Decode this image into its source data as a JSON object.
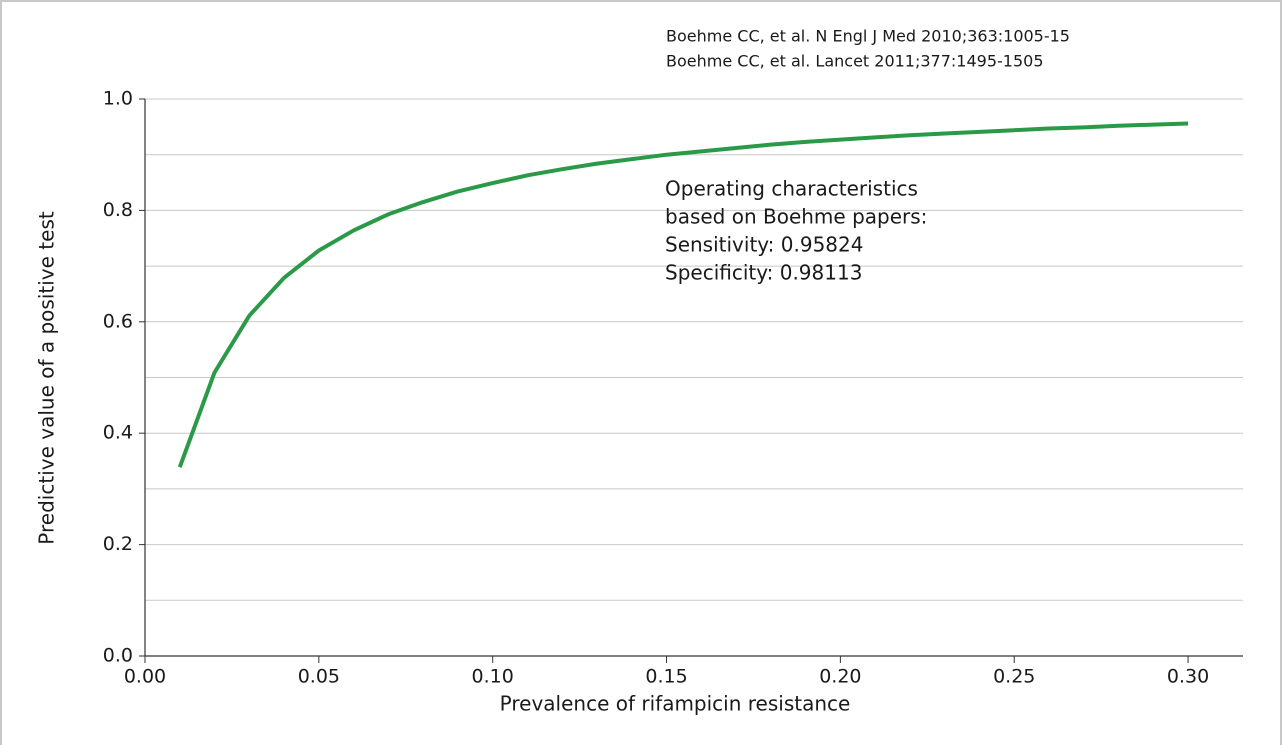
{
  "chart_data": {
    "type": "line",
    "references": [
      "Boehme CC, et al.  N Engl J Med 2010;363:1005-15",
      "Boehme CC, et al. Lancet 2011;377:1495-1505"
    ],
    "annotation": [
      "Operating characteristics",
      "based on Boehme papers:",
      "Sensitivity: 0.95824",
      "Specificity: 0.98113"
    ],
    "x_label": "Prevalence of rifampicin resistance",
    "y_label": "Predictive value of a positive test",
    "x": [
      0.01,
      0.02,
      0.03,
      0.04,
      0.05,
      0.06,
      0.07,
      0.08,
      0.09,
      0.1,
      0.11,
      0.12,
      0.13,
      0.14,
      0.15,
      0.16,
      0.17,
      0.18,
      0.19,
      0.2,
      0.21,
      0.22,
      0.23,
      0.24,
      0.25,
      0.26,
      0.27,
      0.28,
      0.29,
      0.3
    ],
    "series": [
      {
        "color": "#2a9a48",
        "values": [
          0.339,
          0.509,
          0.611,
          0.679,
          0.728,
          0.764,
          0.793,
          0.815,
          0.834,
          0.849,
          0.863,
          0.874,
          0.884,
          0.892,
          0.9,
          0.906,
          0.912,
          0.918,
          0.923,
          0.927,
          0.931,
          0.935,
          0.938,
          0.941,
          0.944,
          0.947,
          0.949,
          0.952,
          0.954,
          0.956
        ]
      }
    ],
    "xlim": [
      0,
      0.3158
    ],
    "ylim": [
      0,
      1
    ],
    "xticks": [
      {
        "value": 0,
        "label": "0.00"
      },
      {
        "value": 0.05,
        "label": "0.05"
      },
      {
        "value": 0.1,
        "label": "0.10"
      },
      {
        "value": 0.15,
        "label": "0.15"
      },
      {
        "value": 0.2,
        "label": "0.20"
      },
      {
        "value": 0.25,
        "label": "0.25"
      },
      {
        "value": 0.3,
        "label": "0.30"
      }
    ],
    "yticks": [
      {
        "value": 0,
        "label": "0.0"
      },
      0.2,
      0.4,
      0.6,
      0.8,
      {
        "value": 1,
        "label": "1.0"
      }
    ],
    "minor_yticks": [
      0.1,
      0.3,
      0.5,
      0.7,
      0.9
    ],
    "grid": true
  }
}
